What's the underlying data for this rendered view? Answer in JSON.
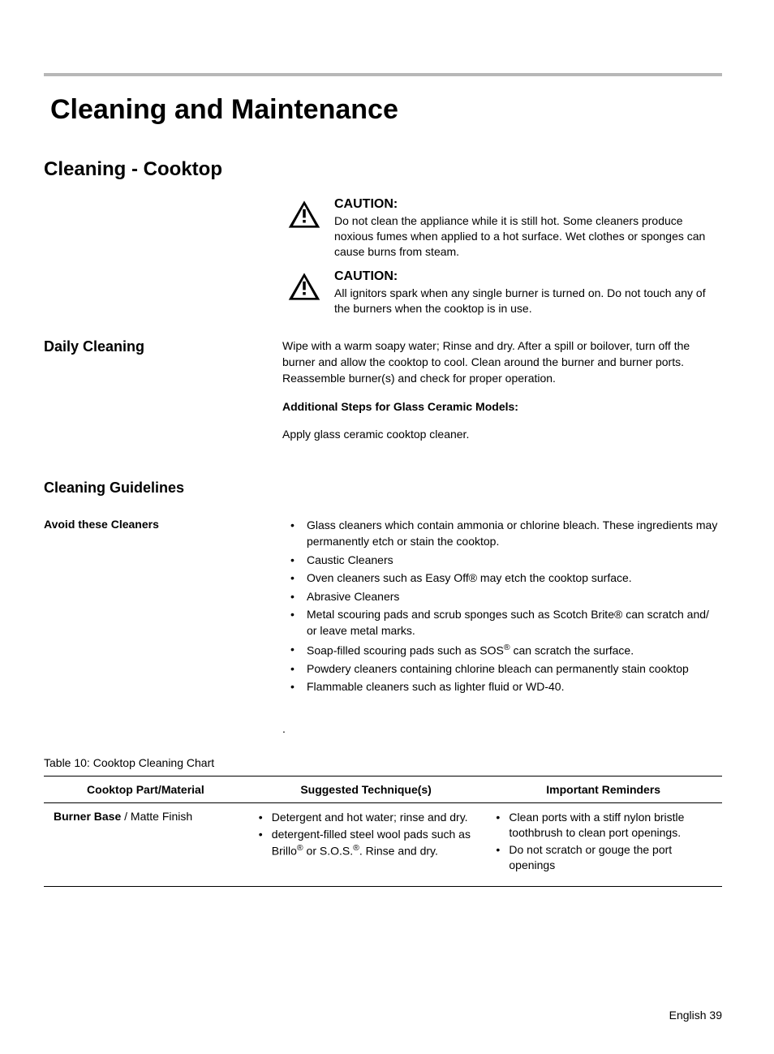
{
  "page": {
    "title": "Cleaning and Maintenance",
    "section": "Cleaning - Cooktop",
    "footer": "English 39"
  },
  "cautions": [
    {
      "label": "CAUTION:",
      "text": "Do not clean the appliance while it is still hot. Some cleaners produce noxious fumes when applied to a hot surface. Wet clothes or sponges can cause burns from steam."
    },
    {
      "label": "CAUTION:",
      "text": "All ignitors spark when any single burner is turned on. Do not touch any of the burners when the cooktop is in use."
    }
  ],
  "daily": {
    "heading": "Daily Cleaning",
    "body": "Wipe with a warm soapy water; Rinse and dry. After a spill or boilover, turn off the burner and allow the cooktop to cool. Clean around the burner and burner ports. Reassemble burner(s) and check for proper operation.",
    "subhead": "Additional Steps for Glass Ceramic Models:",
    "subbody": "Apply glass ceramic cooktop cleaner."
  },
  "guidelines": {
    "heading": "Cleaning Guidelines",
    "avoid_label": "Avoid these Cleaners",
    "avoid_items": [
      "Glass cleaners which contain ammonia or chlorine bleach. These ingredients may permanently etch or stain the cooktop.",
      "Caustic Cleaners",
      "Oven cleaners such as Easy Off® may etch the cooktop surface.",
      "Abrasive Cleaners",
      "Metal scouring pads and scrub sponges such as Scotch Brite® can scratch and/ or leave metal marks.",
      "Soap-filled scouring pads such as SOS® can scratch the surface.",
      "Powdery cleaners containing chlorine bleach can permanently stain cooktop",
      "Flammable cleaners such as lighter fluid or WD-40."
    ]
  },
  "table": {
    "caption": "Table 10: Cooktop Cleaning Chart",
    "headers": [
      "Cooktop Part/Material",
      "Suggested Technique(s)",
      "Important Reminders"
    ],
    "rows": [
      {
        "material_bold": "Burner Base",
        "material_rest": " / Matte Finish",
        "techniques": [
          "Detergent and hot water; rinse and dry.",
          "detergent-filled steel wool pads such as Brillo® or S.O.S.®. Rinse and dry."
        ],
        "reminders": [
          "Clean ports with a stiff nylon bristle toothbrush to clean port openings.",
          "Do not scratch or gouge the port openings"
        ]
      }
    ]
  },
  "stray_dot": "."
}
